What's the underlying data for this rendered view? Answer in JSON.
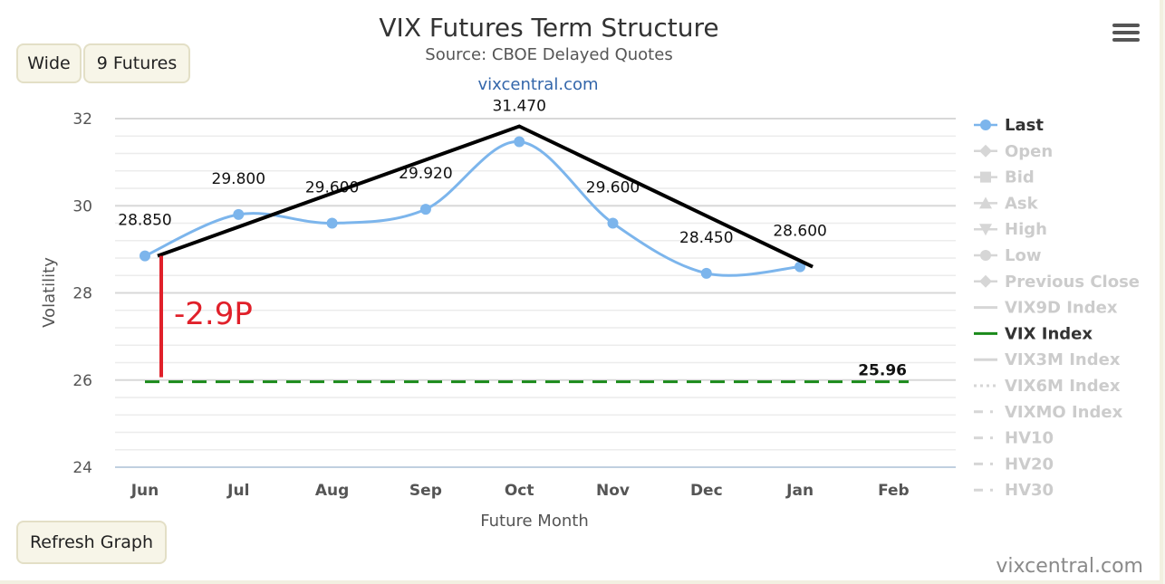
{
  "buttons": {
    "wide": "Wide",
    "futures": "9 Futures",
    "refresh": "Refresh Graph"
  },
  "menu_icon": "hamburger-menu-icon",
  "watermark": "vixcentral.com",
  "chart_data": {
    "type": "line",
    "title": "VIX Futures Term Structure",
    "subtitle": "Source: CBOE Delayed Quotes",
    "credit_top": "vixcentral.com",
    "xlabel": "Future Month",
    "ylabel": "Volatility",
    "categories": [
      "Jun",
      "Jul",
      "Aug",
      "Sep",
      "Oct",
      "Nov",
      "Dec",
      "Jan",
      "Feb"
    ],
    "y_ticks": [
      24,
      26,
      28,
      30,
      32
    ],
    "ylim": [
      24,
      32
    ],
    "grid": true,
    "legend_position": "right",
    "series": [
      {
        "name": "Last",
        "color": "#7cb5ec",
        "smooth": true,
        "values": [
          28.85,
          29.8,
          29.6,
          29.92,
          31.47,
          29.6,
          28.45,
          28.6,
          null
        ],
        "labels": [
          "28.850",
          "29.800",
          "29.600",
          "29.920",
          "31.470",
          "29.600",
          "28.450",
          "28.600",
          ""
        ]
      },
      {
        "name": "VIX Index",
        "color": "#1a8a1a",
        "dashed": true,
        "value": 25.96,
        "label": "25.96"
      }
    ],
    "legend": [
      {
        "name": "Last",
        "marker": "circle",
        "active": true
      },
      {
        "name": "Open",
        "marker": "diamond",
        "active": false
      },
      {
        "name": "Bid",
        "marker": "square",
        "active": false
      },
      {
        "name": "Ask",
        "marker": "triangle",
        "active": false
      },
      {
        "name": "High",
        "marker": "triangle-down",
        "active": false
      },
      {
        "name": "Low",
        "marker": "circle",
        "active": false
      },
      {
        "name": "Previous Close",
        "marker": "diamond",
        "active": false
      },
      {
        "name": "VIX9D Index",
        "marker": "line",
        "active": false
      },
      {
        "name": "VIX Index",
        "marker": "line",
        "active": true
      },
      {
        "name": "VIX3M Index",
        "marker": "line",
        "active": false
      },
      {
        "name": "VIX6M Index",
        "marker": "dotted",
        "active": false
      },
      {
        "name": "VIXMO Index",
        "marker": "dashdot",
        "active": false
      },
      {
        "name": "HV10",
        "marker": "dashdot",
        "active": false
      },
      {
        "name": "HV20",
        "marker": "dashdot",
        "active": false
      },
      {
        "name": "HV30",
        "marker": "dashdot",
        "active": false
      }
    ],
    "annotations": {
      "peak_lines": {
        "from": "Jun",
        "peak": "Oct",
        "to": "Jan",
        "color": "#000000"
      },
      "gap_line_color": "#e0202a",
      "gap_label": "-2.9P"
    }
  }
}
